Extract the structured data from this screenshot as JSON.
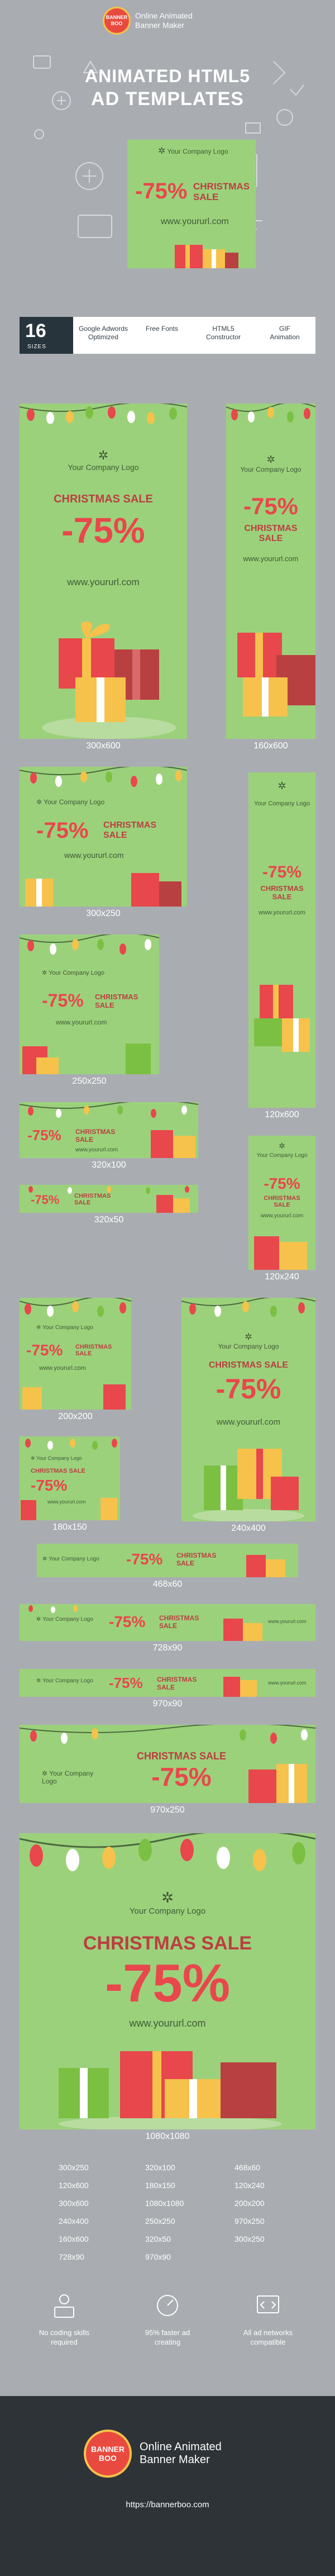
{
  "header": {
    "brand_badge": "BANNER BOO",
    "brand_line1": "Online Animated",
    "brand_line2": "Banner Maker",
    "title_line1": "ANIMATED HTML5",
    "title_line2": "AD TEMPLATES"
  },
  "features": {
    "count": "16",
    "count_label": "SIZES",
    "items": [
      "Google Adwords Optimized",
      "Free Fonts",
      "HTML5 Constructor",
      "GIF Animation"
    ]
  },
  "ad": {
    "logo": "Your Company Logo",
    "sale": "CHRISTMAS SALE",
    "pct": "-75%",
    "url": "www.yoururl.com"
  },
  "captions": {
    "c300x600": "300x600",
    "c160x600": "160x600",
    "c300x250": "300x250",
    "c120x600": "120x600",
    "c250x250": "250x250",
    "c320x100": "320x100",
    "c320x50": "320x50",
    "c120x240": "120x240",
    "c200x200": "200x200",
    "c180x150": "180x150",
    "c240x400": "240x400",
    "c468x60": "468x60",
    "c728x90": "728x90",
    "c970x90": "970x90",
    "c970x250": "970x250",
    "c1080x1080": "1080x1080"
  },
  "size_list": [
    [
      "300x250",
      "320x100",
      "468x60"
    ],
    [
      "120x600",
      "180x150",
      "120x240"
    ],
    [
      "300x600",
      "1080x1080",
      "200x200"
    ],
    [
      "240x400",
      "250x250",
      "970x250"
    ],
    [
      "160x600",
      "320x50",
      "300x250"
    ],
    [
      "728x90",
      "970x90",
      ""
    ]
  ],
  "benefits": [
    "No coding skills required",
    "95% faster ad creating",
    "All ad networks compatible"
  ],
  "footer": {
    "brand_badge": "BANNER BOO",
    "brand_line1": "Online Animated",
    "brand_line2": "Banner Maker",
    "url": "https://bannerboo.com"
  },
  "colors": {
    "background": "#a9adb1",
    "ad_green": "#9cd17b",
    "sale_red": "#e8474c",
    "footer_dark": "#2e3337"
  }
}
